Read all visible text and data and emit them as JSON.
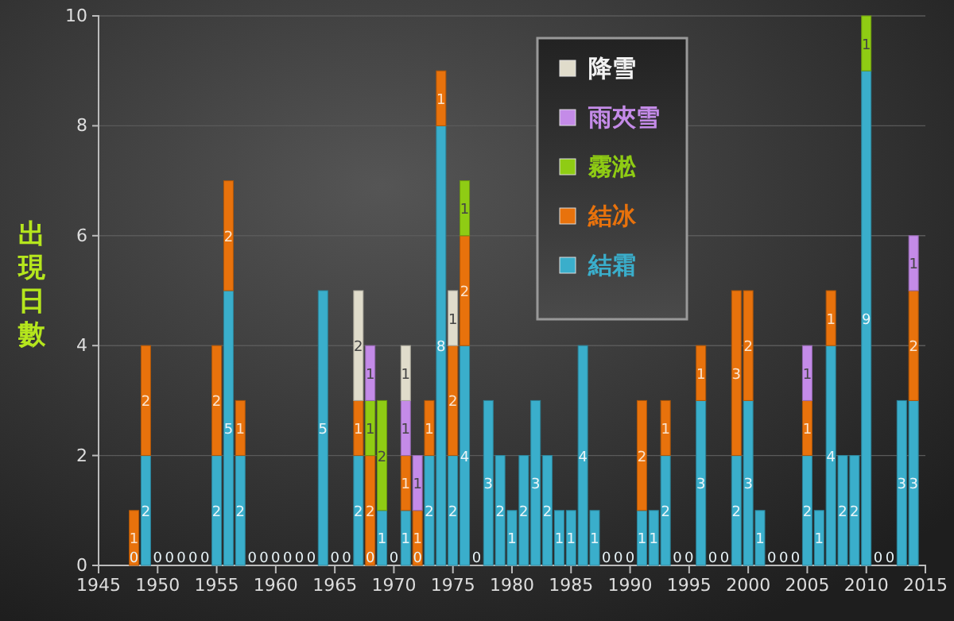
{
  "chart_data": {
    "type": "bar",
    "stacked": true,
    "ylabel": "出現日數",
    "x": [
      1948,
      1949,
      1950,
      1951,
      1952,
      1953,
      1954,
      1955,
      1956,
      1957,
      1958,
      1959,
      1960,
      1961,
      1962,
      1963,
      1964,
      1965,
      1966,
      1967,
      1968,
      1969,
      1970,
      1971,
      1972,
      1973,
      1974,
      1975,
      1976,
      1977,
      1978,
      1979,
      1980,
      1981,
      1982,
      1983,
      1984,
      1985,
      1986,
      1987,
      1988,
      1989,
      1990,
      1991,
      1992,
      1993,
      1994,
      1995,
      1996,
      1997,
      1998,
      1999,
      2000,
      2001,
      2002,
      2003,
      2004,
      2005,
      2006,
      2007,
      2008,
      2009,
      2010,
      2011,
      2012,
      2013,
      2014
    ],
    "series": [
      {
        "name": "結霜",
        "color": "#3aaecb",
        "values": [
          0,
          2,
          0,
          0,
          0,
          0,
          0,
          2,
          5,
          2,
          0,
          0,
          0,
          0,
          0,
          0,
          5,
          0,
          0,
          2,
          null,
          1,
          0,
          1,
          null,
          2,
          8,
          2,
          4,
          0,
          3,
          2,
          1,
          2,
          3,
          2,
          1,
          1,
          4,
          1,
          0,
          0,
          0,
          1,
          1,
          2,
          0,
          0,
          3,
          0,
          0,
          2,
          3,
          1,
          0,
          0,
          0,
          2,
          1,
          4,
          2,
          2,
          9,
          0,
          0,
          3,
          3
        ]
      },
      {
        "name": "結冰",
        "color": "#e8720c",
        "values": [
          1,
          2,
          null,
          null,
          null,
          null,
          null,
          2,
          2,
          1,
          null,
          null,
          null,
          null,
          null,
          null,
          null,
          null,
          null,
          1,
          2,
          null,
          null,
          1,
          1,
          1,
          1,
          2,
          2,
          null,
          null,
          null,
          null,
          null,
          null,
          null,
          null,
          null,
          null,
          null,
          null,
          null,
          null,
          2,
          null,
          1,
          null,
          null,
          1,
          null,
          null,
          3,
          2,
          null,
          null,
          null,
          null,
          1,
          null,
          1,
          null,
          null,
          null,
          null,
          null,
          null,
          2
        ]
      },
      {
        "name": "霧淞",
        "color": "#8fcc14",
        "values": [
          null,
          null,
          null,
          null,
          null,
          null,
          null,
          null,
          null,
          null,
          null,
          null,
          null,
          null,
          null,
          null,
          null,
          null,
          null,
          null,
          1,
          2,
          null,
          null,
          null,
          null,
          null,
          null,
          1,
          null,
          null,
          null,
          null,
          null,
          null,
          null,
          null,
          null,
          null,
          null,
          null,
          null,
          null,
          null,
          null,
          null,
          null,
          null,
          null,
          null,
          null,
          null,
          null,
          null,
          null,
          null,
          null,
          null,
          null,
          null,
          null,
          null,
          1,
          null,
          null,
          null,
          null
        ]
      },
      {
        "name": "雨夾雪",
        "color": "#c48be8",
        "values": [
          null,
          null,
          null,
          null,
          null,
          null,
          null,
          null,
          null,
          null,
          null,
          null,
          null,
          null,
          null,
          null,
          null,
          null,
          null,
          null,
          1,
          null,
          null,
          1,
          1,
          null,
          null,
          null,
          null,
          null,
          null,
          null,
          null,
          null,
          null,
          null,
          null,
          null,
          null,
          null,
          null,
          null,
          null,
          null,
          null,
          null,
          null,
          null,
          null,
          null,
          null,
          null,
          null,
          null,
          null,
          null,
          null,
          1,
          null,
          null,
          null,
          null,
          null,
          null,
          null,
          null,
          1
        ]
      },
      {
        "name": "降雪",
        "color": "#e0dccb",
        "values": [
          null,
          null,
          null,
          null,
          null,
          null,
          null,
          null,
          null,
          null,
          null,
          null,
          null,
          null,
          null,
          null,
          null,
          null,
          null,
          2,
          null,
          null,
          null,
          1,
          null,
          null,
          null,
          1,
          null,
          null,
          null,
          null,
          null,
          null,
          null,
          null,
          null,
          null,
          null,
          null,
          null,
          null,
          null,
          null,
          null,
          null,
          null,
          null,
          null,
          null,
          null,
          null,
          null,
          null,
          null,
          null,
          null,
          null,
          null,
          null,
          null,
          null,
          null,
          null,
          null,
          null,
          null
        ]
      }
    ],
    "xlim": [
      1945,
      2015
    ],
    "xticks": [
      1945,
      1950,
      1955,
      1960,
      1965,
      1970,
      1975,
      1980,
      1985,
      1990,
      1995,
      2000,
      2005,
      2010,
      2015
    ],
    "ylim": [
      0,
      10
    ],
    "yticks": [
      0,
      2,
      4,
      6,
      8,
      10
    ],
    "annotations": [
      {
        "text": "0",
        "x": 1968,
        "y": 0
      },
      {
        "text": "0",
        "x": 1972,
        "y": 0
      }
    ],
    "grid": "y",
    "legend": "top",
    "data_labels": true
  }
}
